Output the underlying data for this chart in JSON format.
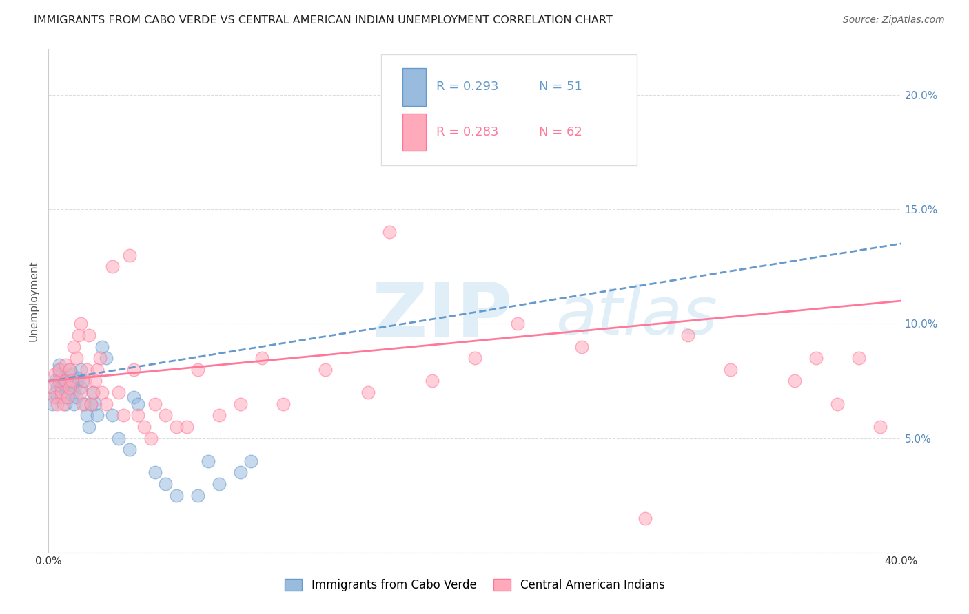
{
  "title": "IMMIGRANTS FROM CABO VERDE VS CENTRAL AMERICAN INDIAN UNEMPLOYMENT CORRELATION CHART",
  "source": "Source: ZipAtlas.com",
  "ylabel": "Unemployment",
  "xlim": [
    0.0,
    0.4
  ],
  "ylim": [
    0.0,
    0.22
  ],
  "xticks": [
    0.0,
    0.1,
    0.2,
    0.3,
    0.4
  ],
  "xtick_labels": [
    "0.0%",
    "",
    "",
    "",
    "40.0%"
  ],
  "yticks": [
    0.0,
    0.05,
    0.1,
    0.15,
    0.2
  ],
  "ytick_labels": [
    "",
    "5.0%",
    "10.0%",
    "15.0%",
    "20.0%"
  ],
  "series1_label": "Immigrants from Cabo Verde",
  "series1_R": "0.293",
  "series1_N": "51",
  "series1_color": "#99BBDD",
  "series1_edge_color": "#6699CC",
  "series2_label": "Central American Indians",
  "series2_R": "0.283",
  "series2_N": "62",
  "series2_color": "#FFAABB",
  "series2_edge_color": "#FF7799",
  "background_color": "#FFFFFF",
  "grid_color": "#DDDDDD",
  "watermark_color": "#AACCEE",
  "cabo_verde_x": [
    0.002,
    0.003,
    0.003,
    0.004,
    0.004,
    0.005,
    0.005,
    0.005,
    0.006,
    0.006,
    0.006,
    0.007,
    0.007,
    0.008,
    0.008,
    0.009,
    0.009,
    0.01,
    0.01,
    0.011,
    0.011,
    0.012,
    0.012,
    0.013,
    0.013,
    0.014,
    0.015,
    0.015,
    0.016,
    0.017,
    0.018,
    0.019,
    0.02,
    0.021,
    0.022,
    0.023,
    0.025,
    0.027,
    0.03,
    0.033,
    0.038,
    0.04,
    0.042,
    0.05,
    0.055,
    0.06,
    0.07,
    0.075,
    0.08,
    0.09,
    0.095
  ],
  "cabo_verde_y": [
    0.065,
    0.07,
    0.075,
    0.068,
    0.072,
    0.078,
    0.08,
    0.082,
    0.075,
    0.072,
    0.068,
    0.074,
    0.076,
    0.07,
    0.065,
    0.068,
    0.072,
    0.075,
    0.08,
    0.078,
    0.072,
    0.07,
    0.065,
    0.068,
    0.074,
    0.076,
    0.08,
    0.072,
    0.075,
    0.065,
    0.06,
    0.055,
    0.065,
    0.07,
    0.065,
    0.06,
    0.09,
    0.085,
    0.06,
    0.05,
    0.045,
    0.068,
    0.065,
    0.035,
    0.03,
    0.025,
    0.025,
    0.04,
    0.03,
    0.035,
    0.04
  ],
  "central_american_x": [
    0.002,
    0.003,
    0.003,
    0.004,
    0.005,
    0.005,
    0.006,
    0.007,
    0.008,
    0.008,
    0.009,
    0.01,
    0.01,
    0.011,
    0.012,
    0.013,
    0.014,
    0.015,
    0.015,
    0.016,
    0.017,
    0.018,
    0.019,
    0.02,
    0.021,
    0.022,
    0.023,
    0.024,
    0.025,
    0.027,
    0.03,
    0.033,
    0.035,
    0.038,
    0.04,
    0.042,
    0.045,
    0.048,
    0.05,
    0.055,
    0.06,
    0.065,
    0.07,
    0.08,
    0.09,
    0.1,
    0.11,
    0.13,
    0.15,
    0.16,
    0.18,
    0.2,
    0.22,
    0.25,
    0.28,
    0.3,
    0.32,
    0.35,
    0.36,
    0.37,
    0.38,
    0.39
  ],
  "central_american_y": [
    0.072,
    0.068,
    0.078,
    0.065,
    0.075,
    0.08,
    0.07,
    0.065,
    0.075,
    0.082,
    0.068,
    0.072,
    0.08,
    0.075,
    0.09,
    0.085,
    0.095,
    0.1,
    0.07,
    0.065,
    0.075,
    0.08,
    0.095,
    0.065,
    0.07,
    0.075,
    0.08,
    0.085,
    0.07,
    0.065,
    0.125,
    0.07,
    0.06,
    0.13,
    0.08,
    0.06,
    0.055,
    0.05,
    0.065,
    0.06,
    0.055,
    0.055,
    0.08,
    0.06,
    0.065,
    0.085,
    0.065,
    0.08,
    0.07,
    0.14,
    0.075,
    0.085,
    0.1,
    0.09,
    0.015,
    0.095,
    0.08,
    0.075,
    0.085,
    0.065,
    0.085,
    0.055
  ],
  "trend_blue_x0": 0.0,
  "trend_blue_x1": 0.4,
  "trend_blue_y0": 0.075,
  "trend_blue_y1": 0.135,
  "trend_pink_x0": 0.0,
  "trend_pink_x1": 0.4,
  "trend_pink_y0": 0.075,
  "trend_pink_y1": 0.11
}
